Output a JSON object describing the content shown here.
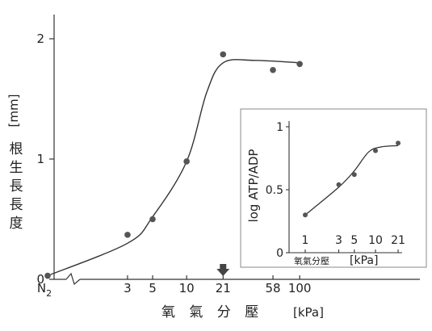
{
  "chart_data": [
    {
      "type": "scatter",
      "ylabel_unit": "[mm]",
      "ylabel": "根生長長度",
      "xlabel": "氧 氣 分 壓",
      "xlabel_unit": "[kPa]",
      "y_ticks": [
        "0",
        "1",
        "2"
      ],
      "ylim": [
        0,
        2.2
      ],
      "x_tick_labels": [
        "N2",
        "3",
        "5",
        "10",
        "21",
        "58",
        "100"
      ],
      "x_scale": "log (axis broken after N2)",
      "points": [
        {
          "x": "N2",
          "y": 0.03
        },
        {
          "x": 3,
          "y": 0.37
        },
        {
          "x": 5,
          "y": 0.5
        },
        {
          "x": 10,
          "y": 0.98
        },
        {
          "x": 21,
          "y": 1.87
        },
        {
          "x": 58,
          "y": 1.74
        },
        {
          "x": 100,
          "y": 1.79
        }
      ],
      "fitted_curve": [
        {
          "x": "N2",
          "y": 0.03
        },
        {
          "x": 3,
          "y": 0.3
        },
        {
          "x": 5,
          "y": 0.52
        },
        {
          "x": 10,
          "y": 0.98
        },
        {
          "x": 15,
          "y": 1.55
        },
        {
          "x": 21,
          "y": 1.8
        },
        {
          "x": 40,
          "y": 1.82
        },
        {
          "x": 100,
          "y": 1.8
        }
      ],
      "marker": {
        "x": 21,
        "symbol": "down-arrow"
      }
    },
    {
      "type": "scatter",
      "ylabel": "log ATP/ADP",
      "xlabel": "氧氣分壓",
      "xlabel_unit": "[kPa]",
      "y_ticks": [
        "0",
        "0.5",
        "1"
      ],
      "ylim": [
        0,
        1.05
      ],
      "x_tick_labels": [
        "1",
        "3",
        "5",
        "10",
        "21"
      ],
      "x_scale": "log",
      "points": [
        {
          "x": 1,
          "y": 0.3
        },
        {
          "x": 3,
          "y": 0.54
        },
        {
          "x": 5,
          "y": 0.62
        },
        {
          "x": 10,
          "y": 0.81
        },
        {
          "x": 21,
          "y": 0.87
        }
      ],
      "fitted_curve": [
        {
          "x": 1,
          "y": 0.3
        },
        {
          "x": 3,
          "y": 0.52
        },
        {
          "x": 5,
          "y": 0.65
        },
        {
          "x": 8,
          "y": 0.8
        },
        {
          "x": 12,
          "y": 0.84
        },
        {
          "x": 21,
          "y": 0.85
        }
      ]
    }
  ],
  "colors": {
    "ink": "#333333",
    "point": "#555555"
  }
}
